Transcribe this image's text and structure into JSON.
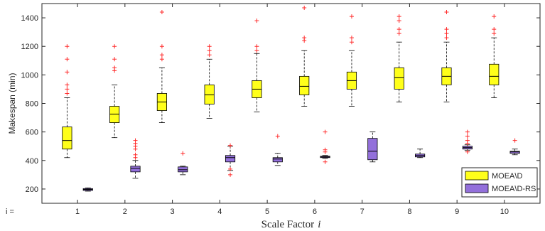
{
  "chart_data": {
    "type": "box",
    "xlabel": "Scale Factor",
    "xlabel_var": "i",
    "xtick_prefix": "i =",
    "ylabel": "Makespan (min)",
    "ylim": [
      100,
      1500
    ],
    "yticks": [
      200,
      400,
      600,
      800,
      1000,
      1200,
      1400
    ],
    "categories": [
      "1",
      "2",
      "3",
      "4",
      "5",
      "6",
      "7",
      "8",
      "9",
      "10"
    ],
    "legend_position": "bottom-right",
    "grid": false,
    "series": [
      {
        "name": "MOEA\\D",
        "color": "#ffff1a",
        "boxes": [
          {
            "whisker_low": 420,
            "q1": 480,
            "median": 540,
            "q3": 635,
            "whisker_high": 840,
            "outliers": [
              870,
              900,
              930,
              1020,
              1110,
              1200
            ]
          },
          {
            "whisker_low": 560,
            "q1": 665,
            "median": 725,
            "q3": 780,
            "whisker_high": 930,
            "outliers": [
              1030,
              1050,
              1110,
              1200
            ]
          },
          {
            "whisker_low": 665,
            "q1": 750,
            "median": 810,
            "q3": 870,
            "whisker_high": 1050,
            "outliers": [
              1110,
              1140,
              1200,
              1440
            ]
          },
          {
            "whisker_low": 695,
            "q1": 795,
            "median": 860,
            "q3": 930,
            "whisker_high": 1110,
            "outliers": [
              1140,
              1170,
              1200
            ]
          },
          {
            "whisker_low": 740,
            "q1": 840,
            "median": 900,
            "q3": 960,
            "whisker_high": 1150,
            "outliers": [
              1170,
              1200,
              1380
            ]
          },
          {
            "whisker_low": 780,
            "q1": 860,
            "median": 920,
            "q3": 990,
            "whisker_high": 1170,
            "outliers": [
              1240,
              1260,
              1470
            ]
          },
          {
            "whisker_low": 780,
            "q1": 900,
            "median": 960,
            "q3": 1020,
            "whisker_high": 1170,
            "outliers": [
              1230,
              1260,
              1410
            ]
          },
          {
            "whisker_low": 810,
            "q1": 900,
            "median": 980,
            "q3": 1050,
            "whisker_high": 1230,
            "outliers": [
              1290,
              1320,
              1380,
              1410
            ]
          },
          {
            "whisker_low": 810,
            "q1": 930,
            "median": 990,
            "q3": 1050,
            "whisker_high": 1230,
            "outliers": [
              1260,
              1290,
              1320,
              1440
            ]
          },
          {
            "whisker_low": 840,
            "q1": 930,
            "median": 990,
            "q3": 1075,
            "whisker_high": 1260,
            "outliers": [
              1290,
              1320,
              1410
            ]
          }
        ]
      },
      {
        "name": "MOEA\\D-RS",
        "color": "#9370db",
        "boxes": [
          {
            "whisker_low": 185,
            "q1": 190,
            "median": 197,
            "q3": 203,
            "whisker_high": 208,
            "outliers": []
          },
          {
            "whisker_low": 275,
            "q1": 320,
            "median": 345,
            "q3": 360,
            "whisker_high": 400,
            "outliers": [
              420,
              440,
              480,
              500,
              520,
              540
            ]
          },
          {
            "whisker_low": 300,
            "q1": 320,
            "median": 335,
            "q3": 355,
            "whisker_high": 360,
            "outliers": [
              450
            ]
          },
          {
            "whisker_low": 330,
            "q1": 390,
            "median": 420,
            "q3": 435,
            "whisker_high": 500,
            "outliers": [
              300,
              340,
              505
            ]
          },
          {
            "whisker_low": 365,
            "q1": 390,
            "median": 410,
            "q3": 420,
            "whisker_high": 450,
            "outliers": [
              570
            ]
          },
          {
            "whisker_low": 415,
            "q1": 420,
            "median": 425,
            "q3": 430,
            "whisker_high": 435,
            "outliers": [
              390,
              460,
              475,
              600
            ]
          },
          {
            "whisker_low": 390,
            "q1": 405,
            "median": 465,
            "q3": 555,
            "whisker_high": 600,
            "outliers": []
          },
          {
            "whisker_low": 420,
            "q1": 425,
            "median": 435,
            "q3": 445,
            "whisker_high": 480,
            "outliers": []
          },
          {
            "whisker_low": 470,
            "q1": 480,
            "median": 490,
            "q3": 500,
            "whisker_high": 510,
            "outliers": [
              460,
              520,
              540,
              570,
              600
            ]
          },
          {
            "whisker_low": 440,
            "q1": 450,
            "median": 460,
            "q3": 465,
            "whisker_high": 480,
            "outliers": [
              540
            ]
          }
        ]
      }
    ]
  }
}
